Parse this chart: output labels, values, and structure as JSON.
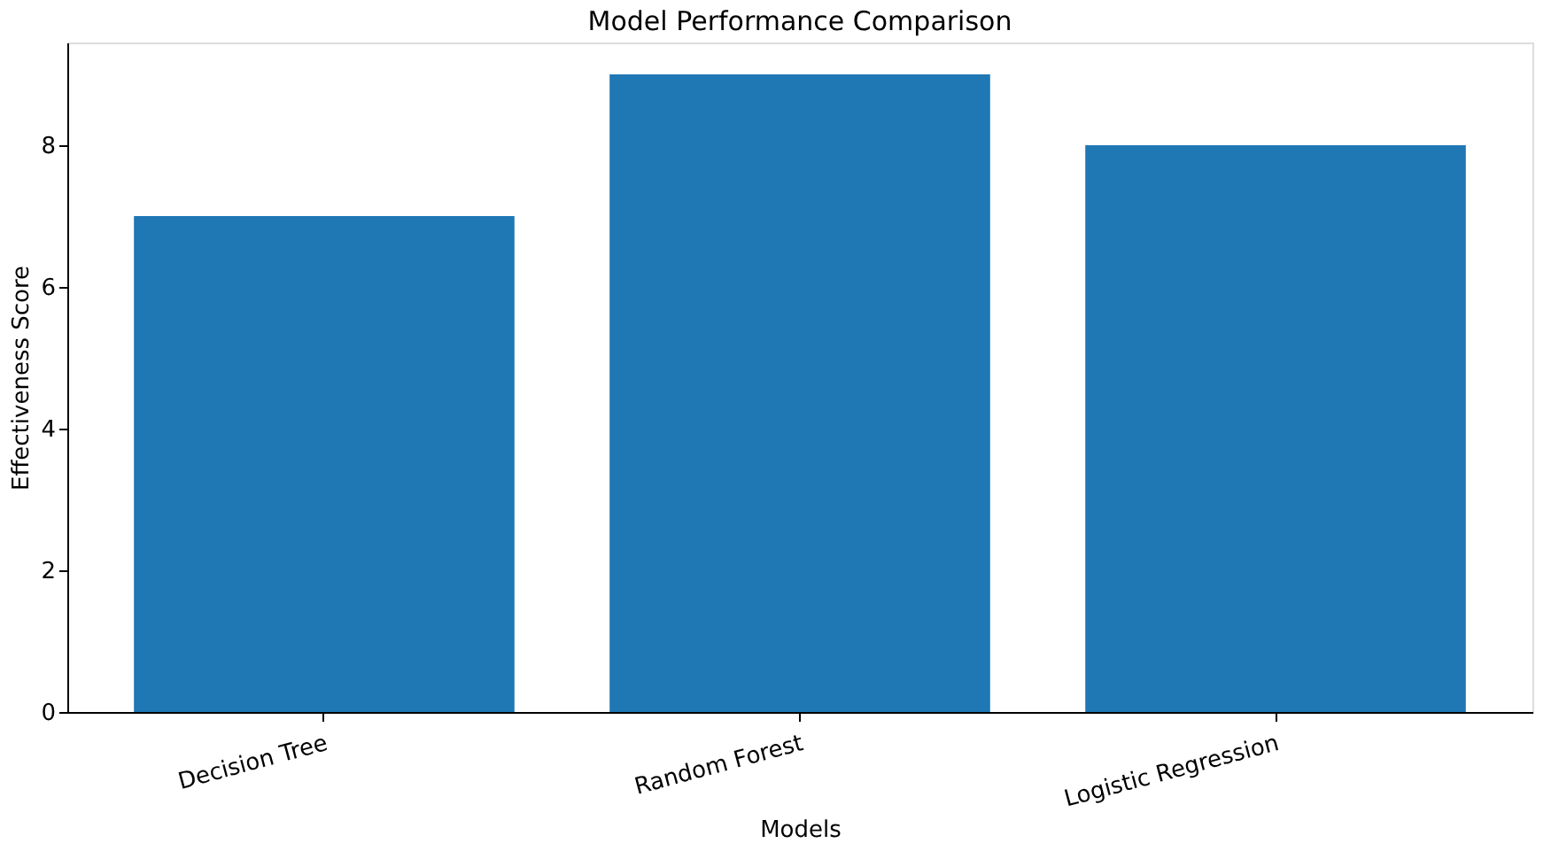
{
  "chart_data": {
    "type": "bar",
    "title": "Model Performance Comparison",
    "xlabel": "Models",
    "ylabel": "Effectiveness Score",
    "categories": [
      "Decision Tree",
      "Random Forest",
      "Logistic Regression"
    ],
    "values": [
      7,
      9,
      8
    ],
    "color": "#1f77b4",
    "ylim": [
      0,
      9.45
    ],
    "yticks": [
      0,
      2,
      4,
      6,
      8
    ],
    "grid": false
  }
}
